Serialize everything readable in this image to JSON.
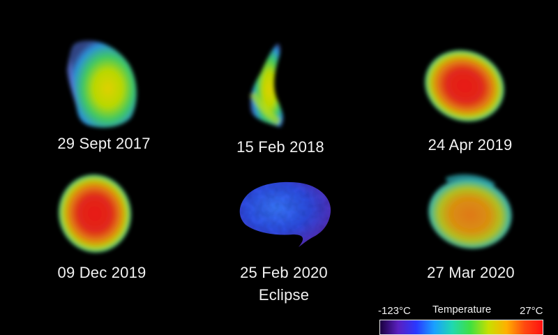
{
  "panels": [
    {
      "date": "29 Sept 2017"
    },
    {
      "date": "15 Feb 2018"
    },
    {
      "date": "24 Apr 2019"
    },
    {
      "date": "09 Dec 2019"
    },
    {
      "date": "25 Feb 2020",
      "note": "Eclipse"
    },
    {
      "date": "27 Mar 2020"
    }
  ],
  "color_scale": {
    "title": "Temperature",
    "min_label": "-123°C",
    "max_label": "27°C",
    "colors": [
      "#1a0040",
      "#5a20c0",
      "#2a38ff",
      "#1aa0ff",
      "#20d8b0",
      "#40e040",
      "#c8e000",
      "#ffb000",
      "#ff4a10",
      "#ff1010"
    ]
  }
}
